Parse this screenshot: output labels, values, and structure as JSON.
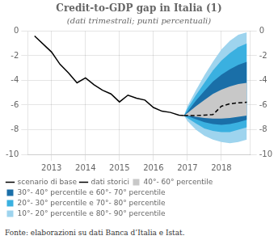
{
  "chart_data": {
    "type": "line",
    "title": "Credit-to-GDP gap in Italia (1)",
    "subtitle": "(dati trimestrali; punti percentuali)",
    "source": "Fonte: elaborazioni su dati Banca d’Italia e Istat.",
    "xlim": [
      2012.3,
      2018.85
    ],
    "xticks": [
      2013,
      2014,
      2015,
      2016,
      2017,
      2018
    ],
    "ylim": [
      -10,
      0
    ],
    "yticks": [
      0,
      -2,
      -4,
      -6,
      -8,
      -10
    ],
    "y2lim": [
      -10,
      0
    ],
    "y2ticks": [
      0,
      -2,
      -4,
      -6,
      -8,
      -10
    ],
    "grid": true,
    "legend": "bottom",
    "series": [
      {
        "name": "10°- 20° percentile e 80°- 90° percentile",
        "type": "band",
        "color": "#9ed4ee",
        "x": [
          2016.9,
          2017.0,
          2017.25,
          2017.5,
          2017.75,
          2018.0,
          2018.25,
          2018.5,
          2018.75
        ],
        "lower": [
          -6.85,
          -7.3,
          -8.0,
          -8.5,
          -8.8,
          -9.0,
          -9.1,
          -9.0,
          -8.8
        ],
        "upper": [
          -6.85,
          -6.1,
          -4.8,
          -3.6,
          -2.5,
          -1.5,
          -0.8,
          -0.3,
          -0.1
        ]
      },
      {
        "name": "20°- 30° percentile e 70°- 80° percentile",
        "type": "band",
        "color": "#3ab0e0",
        "x": [
          2016.9,
          2017.0,
          2017.25,
          2017.5,
          2017.75,
          2018.0,
          2018.25,
          2018.5,
          2018.75
        ],
        "lower": [
          -6.85,
          -7.05,
          -7.5,
          -7.9,
          -8.1,
          -8.2,
          -8.2,
          -8.0,
          -7.8
        ],
        "upper": [
          -6.85,
          -6.3,
          -5.2,
          -4.2,
          -3.2,
          -2.4,
          -1.8,
          -1.3,
          -1.0
        ]
      },
      {
        "name": "30°- 40° percentile e 60°- 70° percentile",
        "type": "band",
        "color": "#1a6fa8",
        "x": [
          2016.9,
          2017.0,
          2017.25,
          2017.5,
          2017.75,
          2018.0,
          2018.25,
          2018.5,
          2018.75
        ],
        "lower": [
          -6.85,
          -6.9,
          -7.15,
          -7.4,
          -7.55,
          -7.6,
          -7.55,
          -7.4,
          -7.2
        ],
        "upper": [
          -6.85,
          -6.55,
          -5.65,
          -4.85,
          -4.1,
          -3.55,
          -3.1,
          -2.75,
          -2.5
        ]
      },
      {
        "name": "40°- 60° percentile",
        "type": "band",
        "color": "#c8c8c8",
        "x": [
          2016.9,
          2017.0,
          2017.25,
          2017.5,
          2017.75,
          2018.0,
          2018.25,
          2018.5,
          2018.75
        ],
        "lower": [
          -6.85,
          -6.85,
          -6.95,
          -7.05,
          -7.1,
          -7.1,
          -7.05,
          -6.95,
          -6.85
        ],
        "upper": [
          -6.85,
          -6.65,
          -6.1,
          -5.6,
          -5.1,
          -4.75,
          -4.5,
          -4.3,
          -4.2
        ]
      },
      {
        "name": "dati storici",
        "type": "line",
        "color": "#000000",
        "line_style": "solid",
        "x": [
          2012.5,
          2013.0,
          2013.25,
          2013.5,
          2013.75,
          2014.0,
          2014.25,
          2014.5,
          2014.75,
          2015.0,
          2015.25,
          2015.5,
          2015.75,
          2016.0,
          2016.25,
          2016.5,
          2016.75,
          2016.9
        ],
        "values": [
          -0.4,
          -1.7,
          -2.7,
          -3.4,
          -4.2,
          -3.8,
          -4.35,
          -4.8,
          -5.1,
          -5.75,
          -5.2,
          -5.45,
          -5.6,
          -6.2,
          -6.5,
          -6.6,
          -6.82,
          -6.85
        ]
      },
      {
        "name": "scenario di base",
        "type": "line",
        "color": "#000000",
        "line_style": "dashed",
        "x": [
          2016.9,
          2017.0,
          2017.25,
          2017.5,
          2017.75,
          2018.0,
          2018.25,
          2018.5,
          2018.75
        ],
        "values": [
          -6.85,
          -6.85,
          -6.85,
          -6.82,
          -6.78,
          -6.1,
          -5.9,
          -5.82,
          -5.78
        ]
      }
    ]
  }
}
